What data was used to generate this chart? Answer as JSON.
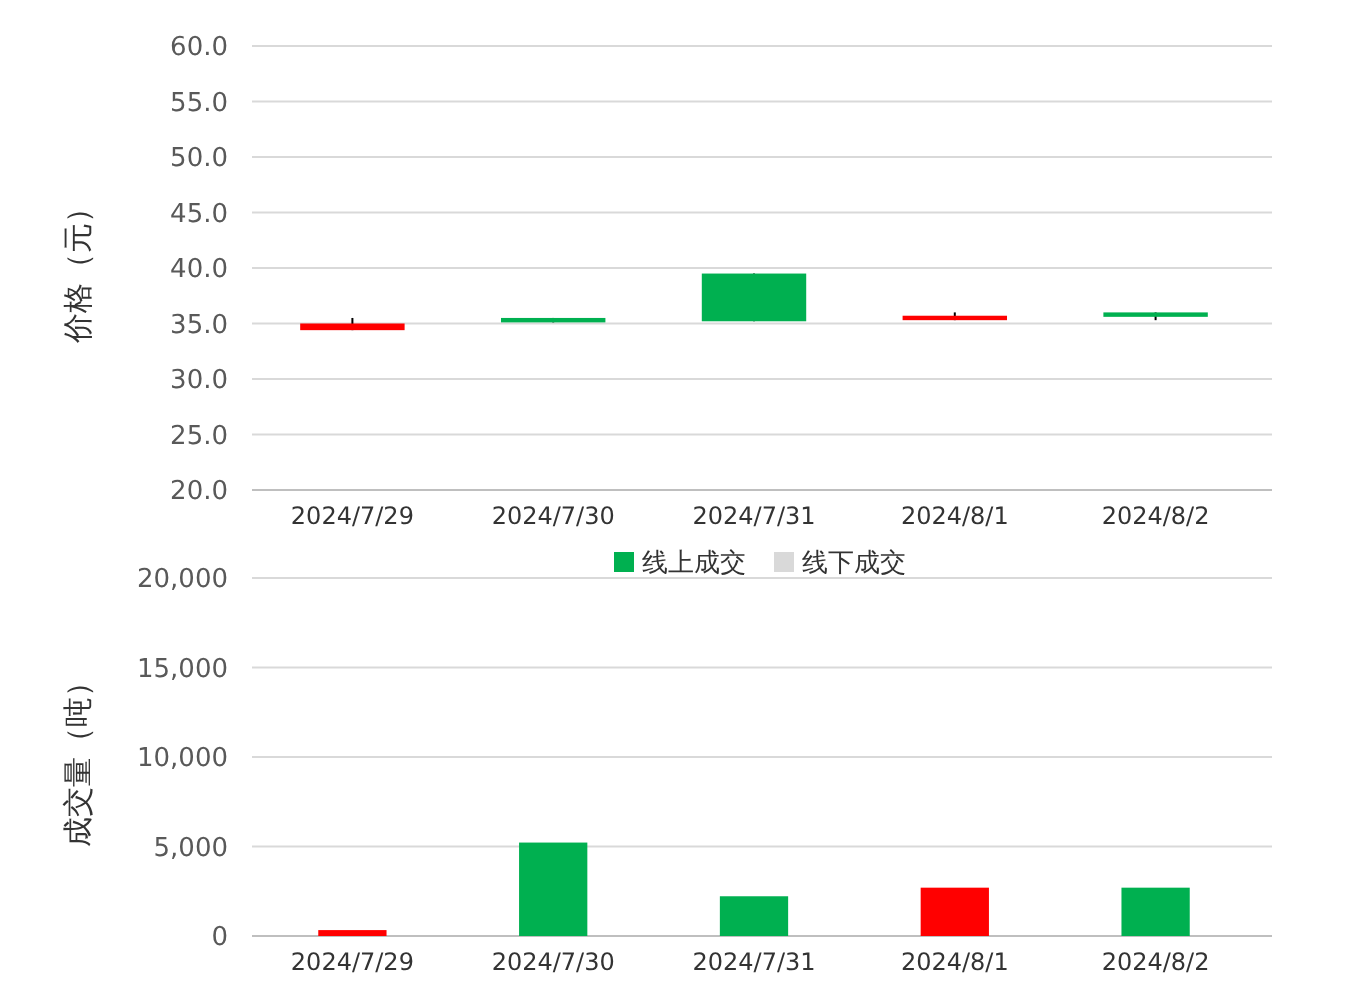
{
  "chart_data": [
    {
      "type": "candlestick",
      "ylabel": "价格（元）",
      "categories": [
        "2024/7/29",
        "2024/7/30",
        "2024/7/31",
        "2024/8/1",
        "2024/8/2"
      ],
      "ohlc": [
        [
          34.4,
          35.5,
          34.4,
          35.0
        ],
        [
          35.5,
          35.5,
          35.1,
          35.1
        ],
        [
          39.5,
          39.5,
          35.2,
          35.2
        ],
        [
          35.3,
          36.0,
          35.3,
          35.7
        ],
        [
          36.0,
          36.0,
          35.3,
          35.6
        ]
      ],
      "colors": [
        "#ff0000",
        "#00b050",
        "#00b050",
        "#ff0000",
        "#00b050"
      ],
      "ylim": [
        20,
        60
      ],
      "yticks": [
        {
          "value": 20,
          "label": "20.0"
        },
        {
          "value": 25,
          "label": "25.0"
        },
        {
          "value": 30,
          "label": "30.0"
        },
        {
          "value": 35,
          "label": "35.0"
        },
        {
          "value": 40,
          "label": "40.0"
        },
        {
          "value": 45,
          "label": "45.0"
        },
        {
          "value": 50,
          "label": "50.0"
        },
        {
          "value": 55,
          "label": "55.0"
        },
        {
          "value": 60,
          "label": "60.0"
        }
      ],
      "grid": "y"
    },
    {
      "type": "bar",
      "ylabel": "成交量（吨）",
      "categories": [
        "2024/7/29",
        "2024/7/30",
        "2024/7/31",
        "2024/8/1",
        "2024/8/2"
      ],
      "stacked": true,
      "legend": "top",
      "series": [
        {
          "name": "线上成交",
          "color": "#00b050",
          "colors": [
            "#ff0000",
            "#00b050",
            "#00b050",
            "#ff0000",
            "#00b050"
          ],
          "values": [
            330,
            5220,
            2220,
            2700,
            2700
          ]
        },
        {
          "name": "线下成交",
          "color": "#d9d9d9",
          "values": [
            0,
            0,
            0,
            0,
            0
          ]
        }
      ],
      "ylim": [
        0,
        20000
      ],
      "yticks": [
        {
          "value": 0,
          "label": "0"
        },
        {
          "value": 5000,
          "label": "5,000"
        },
        {
          "value": 10000,
          "label": "10,000"
        },
        {
          "value": 15000,
          "label": "15,000"
        },
        {
          "value": 20000,
          "label": "20,000"
        }
      ],
      "grid": "y"
    }
  ]
}
